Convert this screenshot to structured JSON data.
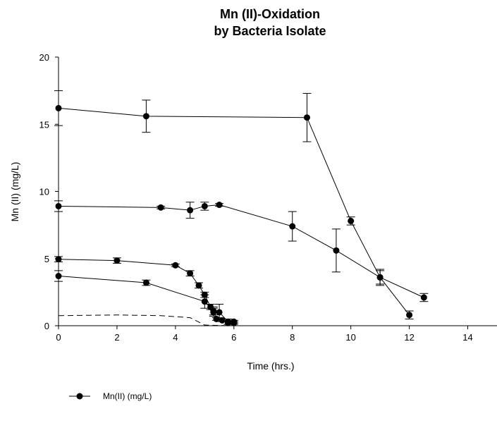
{
  "chart_data": {
    "type": "line",
    "title_line1": "Mn (II)-Oxidation",
    "title_line2": "by Bacteria Isolate",
    "xlabel": "Time (hrs.)",
    "ylabel": "Mn (II) (mg/L)",
    "xlim": [
      0,
      15
    ],
    "ylim": [
      0,
      20
    ],
    "xticks": [
      0,
      2,
      4,
      6,
      8,
      10,
      12,
      14
    ],
    "yticks": [
      0,
      5,
      10,
      15,
      20
    ],
    "grid": false,
    "legend_position": "bottom-left",
    "legend_label": "Mn(II) (mg/L)",
    "series": [
      {
        "style": "solid-markers",
        "points": [
          {
            "x": 0,
            "y": 16.2,
            "err": 1.3
          },
          {
            "x": 3,
            "y": 15.6,
            "err": 1.2
          },
          {
            "x": 8.5,
            "y": 15.5,
            "err": 1.8
          },
          {
            "x": 10,
            "y": 7.8,
            "err": 0.3
          },
          {
            "x": 11,
            "y": 3.6,
            "err": 0.5
          },
          {
            "x": 12,
            "y": 0.8,
            "err": 0.3
          }
        ]
      },
      {
        "style": "solid-markers",
        "points": [
          {
            "x": 0,
            "y": 8.9,
            "err": 0.4
          },
          {
            "x": 3.5,
            "y": 8.8,
            "err": 0.1
          },
          {
            "x": 4.5,
            "y": 8.6,
            "err": 0.6
          },
          {
            "x": 5,
            "y": 8.9,
            "err": 0.3
          },
          {
            "x": 5.5,
            "y": 9.0,
            "err": 0.1
          },
          {
            "x": 8,
            "y": 7.4,
            "err": 1.1
          },
          {
            "x": 9.5,
            "y": 5.6,
            "err": 1.6
          },
          {
            "x": 11,
            "y": 3.6,
            "err": 0.6
          },
          {
            "x": 12.5,
            "y": 2.1,
            "err": 0.3
          }
        ]
      },
      {
        "style": "solid-markers",
        "points": [
          {
            "x": 0,
            "y": 4.95,
            "err": 0.2
          },
          {
            "x": 2,
            "y": 4.85,
            "err": 0.2
          },
          {
            "x": 4,
            "y": 4.5,
            "err": 0.1
          },
          {
            "x": 4.5,
            "y": 3.9,
            "err": 0.2
          },
          {
            "x": 4.8,
            "y": 3.0,
            "err": 0.2
          },
          {
            "x": 5.0,
            "y": 2.3,
            "err": 0.2
          },
          {
            "x": 5.2,
            "y": 1.4,
            "err": 0.2
          },
          {
            "x": 5.3,
            "y": 1.0,
            "err": 0.3
          },
          {
            "x": 5.5,
            "y": 1.0,
            "err": 0.6
          },
          {
            "x": 5.8,
            "y": 0.3,
            "err": 0.2
          },
          {
            "x": 6.0,
            "y": 0.3,
            "err": 0.1
          }
        ]
      },
      {
        "style": "solid-markers",
        "points": [
          {
            "x": 0,
            "y": 3.7,
            "err": 0.4
          },
          {
            "x": 3,
            "y": 3.2,
            "err": 0.2
          },
          {
            "x": 5.0,
            "y": 1.8,
            "err": 0.5
          },
          {
            "x": 5.3,
            "y": 1.1,
            "err": 0.3
          },
          {
            "x": 5.4,
            "y": 0.5,
            "err": 0.1
          },
          {
            "x": 5.6,
            "y": 0.4,
            "err": 0.1
          },
          {
            "x": 5.8,
            "y": 0.2,
            "err": 0.1
          },
          {
            "x": 6.0,
            "y": 0.2,
            "err": 0.1
          }
        ]
      },
      {
        "style": "dashed",
        "points": [
          {
            "x": 0,
            "y": 0.75
          },
          {
            "x": 2,
            "y": 0.8
          },
          {
            "x": 3.5,
            "y": 0.75
          },
          {
            "x": 4.5,
            "y": 0.6
          },
          {
            "x": 5.0,
            "y": 0.05
          },
          {
            "x": 5.5,
            "y": 0.02
          },
          {
            "x": 6.0,
            "y": 0.0
          }
        ]
      }
    ]
  }
}
